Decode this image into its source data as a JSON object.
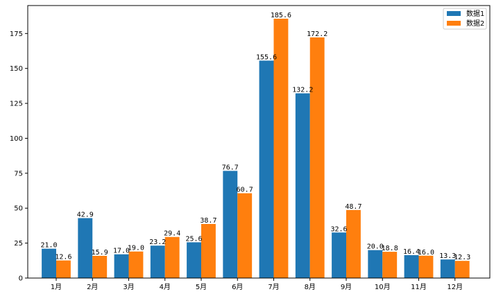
{
  "chart_data": {
    "type": "bar",
    "categories": [
      "1月",
      "2月",
      "3月",
      "4月",
      "5月",
      "6月",
      "7月",
      "8月",
      "9月",
      "10月",
      "11月",
      "12月"
    ],
    "series": [
      {
        "name": "数据1",
        "color": "#1f77b4",
        "values": [
          21.0,
          42.9,
          17.0,
          23.2,
          25.6,
          76.7,
          155.6,
          132.2,
          32.6,
          20.0,
          16.4,
          13.3
        ]
      },
      {
        "name": "数据2",
        "color": "#ff7f0e",
        "values": [
          12.6,
          15.9,
          19.0,
          29.4,
          38.7,
          60.7,
          185.6,
          172.2,
          48.7,
          18.8,
          16.0,
          12.3
        ]
      }
    ],
    "ylim": [
      0,
      195
    ],
    "yticks": [
      0,
      25,
      50,
      75,
      100,
      125,
      150,
      175
    ],
    "data_labels": true,
    "grid": false,
    "legend_position": "top-right",
    "title": "",
    "xlabel": "",
    "ylabel": ""
  }
}
